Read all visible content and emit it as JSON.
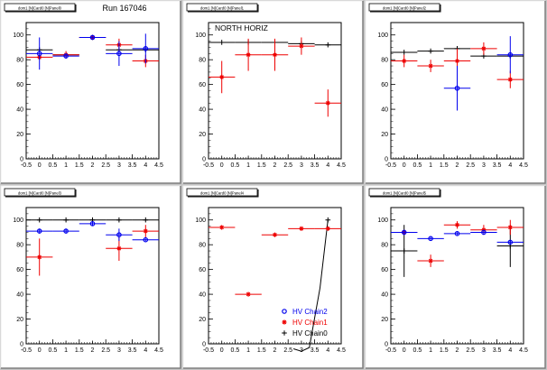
{
  "figure": {
    "run_label": "Run 167046",
    "region_label": "NORTH HORIZ",
    "legend": [
      {
        "label": "HV Chain2",
        "color": "#0000ee",
        "marker": "circle"
      },
      {
        "label": "HV Chain1",
        "color": "#ee0000",
        "marker": "star"
      },
      {
        "label": "HV Chain0",
        "color": "#000000",
        "marker": "plus"
      }
    ]
  },
  "chart_data": [
    {
      "type": "scatter",
      "title": "dom1 [N]Card0 [N]Panel0",
      "xlim": [
        -0.5,
        4.5
      ],
      "ylim": [
        0,
        110
      ],
      "xticks": [
        "-0.5",
        "0",
        "0.5",
        "1",
        "1.5",
        "2",
        "2.5",
        "3",
        "3.5",
        "4",
        "4.5"
      ],
      "yticks": [
        "0",
        "20",
        "40",
        "60",
        "80",
        "100"
      ],
      "series": [
        {
          "name": "HV Chain0",
          "color": "#000000",
          "points": [
            {
              "x": 0,
              "y": 88,
              "xerr": 0.5,
              "yerr": 0
            },
            {
              "x": 1,
              "y": 84,
              "xerr": 0.5,
              "yerr": 0
            },
            {
              "x": 2,
              "y": 98,
              "xerr": 0.5,
              "yerr": 0
            },
            {
              "x": 3,
              "y": 88,
              "xerr": 0.5,
              "yerr": 0
            },
            {
              "x": 4,
              "y": 88,
              "xerr": 0.5,
              "yerr": 0
            }
          ]
        },
        {
          "name": "HV Chain1",
          "color": "#ee0000",
          "points": [
            {
              "x": 0,
              "y": 82,
              "xerr": 0.5,
              "yerr": 2
            },
            {
              "x": 1,
              "y": 84,
              "xerr": 0.5,
              "yerr": 3
            },
            {
              "x": 2,
              "y": 98,
              "xerr": 0.5,
              "yerr": 1
            },
            {
              "x": 3,
              "y": 92,
              "xerr": 0.5,
              "yerr": 5
            },
            {
              "x": 4,
              "y": 79,
              "xerr": 0.5,
              "yerr": 5
            }
          ]
        },
        {
          "name": "HV Chain2",
          "color": "#0000ee",
          "points": [
            {
              "x": 0,
              "y": 85,
              "xerr": 0.5,
              "yerr": 13
            },
            {
              "x": 1,
              "y": 83,
              "xerr": 0.5,
              "yerr": 2
            },
            {
              "x": 2,
              "y": 98,
              "xerr": 0.5,
              "yerr": 1
            },
            {
              "x": 3,
              "y": 85,
              "xerr": 0.5,
              "yerr": 10
            },
            {
              "x": 4,
              "y": 89,
              "xerr": 0.5,
              "yerr": 12
            }
          ]
        }
      ]
    },
    {
      "type": "scatter",
      "title": "dom1 [N]Card0 [N]Panel1",
      "xlim": [
        -0.5,
        4.5
      ],
      "ylim": [
        0,
        110
      ],
      "xticks": [
        "-0.5",
        "0",
        "0.5",
        "1",
        "1.5",
        "2",
        "2.5",
        "3",
        "3.5",
        "4",
        "4.5"
      ],
      "yticks": [
        "0",
        "20",
        "40",
        "60",
        "80",
        "100"
      ],
      "series": [
        {
          "name": "HV Chain0",
          "color": "#000000",
          "points": [
            {
              "x": 0,
              "y": 94,
              "xerr": 0.5,
              "yerr": 0
            },
            {
              "x": 1,
              "y": 94,
              "xerr": 0.5,
              "yerr": 0
            },
            {
              "x": 2,
              "y": 94,
              "xerr": 0.5,
              "yerr": 0
            },
            {
              "x": 3,
              "y": 93,
              "xerr": 0.5,
              "yerr": 0
            },
            {
              "x": 4,
              "y": 92,
              "xerr": 0.5,
              "yerr": 0
            }
          ]
        },
        {
          "name": "HV Chain1",
          "color": "#ee0000",
          "points": [
            {
              "x": 0,
              "y": 66,
              "xerr": 0.5,
              "yerr": 13
            },
            {
              "x": 1,
              "y": 84,
              "xerr": 0.5,
              "yerr": 13
            },
            {
              "x": 2,
              "y": 84,
              "xerr": 0.5,
              "yerr": 13
            },
            {
              "x": 3,
              "y": 91,
              "xerr": 0.5,
              "yerr": 7
            },
            {
              "x": 4,
              "y": 45,
              "xerr": 0.5,
              "yerr": 11
            }
          ]
        }
      ]
    },
    {
      "type": "scatter",
      "title": "dom1 [N]Card0 [N]Panel2",
      "xlim": [
        -0.5,
        4.5
      ],
      "ylim": [
        0,
        110
      ],
      "xticks": [
        "-0.5",
        "0",
        "0.5",
        "1",
        "1.5",
        "2",
        "2.5",
        "3",
        "3.5",
        "4",
        "4.5"
      ],
      "yticks": [
        "0",
        "20",
        "40",
        "60",
        "80",
        "100"
      ],
      "series": [
        {
          "name": "HV Chain0",
          "color": "#000000",
          "points": [
            {
              "x": 0,
              "y": 86,
              "xerr": 0.5,
              "yerr": 0
            },
            {
              "x": 1,
              "y": 87,
              "xerr": 0.5,
              "yerr": 0
            },
            {
              "x": 2,
              "y": 89,
              "xerr": 0.5,
              "yerr": 0
            },
            {
              "x": 3,
              "y": 83,
              "xerr": 0.5,
              "yerr": 0
            },
            {
              "x": 4,
              "y": 83,
              "xerr": 0.5,
              "yerr": 0
            }
          ]
        },
        {
          "name": "HV Chain1",
          "color": "#ee0000",
          "points": [
            {
              "x": 0,
              "y": 79,
              "xerr": 0.5,
              "yerr": 5
            },
            {
              "x": 1,
              "y": 75,
              "xerr": 0.5,
              "yerr": 5
            },
            {
              "x": 2,
              "y": 79,
              "xerr": 0.5,
              "yerr": 10
            },
            {
              "x": 3,
              "y": 89,
              "xerr": 0.5,
              "yerr": 5
            },
            {
              "x": 4,
              "y": 64,
              "xerr": 0.5,
              "yerr": 7
            }
          ]
        },
        {
          "name": "HV Chain2",
          "color": "#0000ee",
          "points": [
            {
              "x": 2,
              "y": 57,
              "xerr": 0.5,
              "yerr": 18
            },
            {
              "x": 4,
              "y": 84,
              "xerr": 0.5,
              "yerr": 15
            }
          ]
        }
      ]
    },
    {
      "type": "scatter",
      "title": "dom1 [N]Card0 [N]Panel3",
      "xlim": [
        -0.5,
        4.5
      ],
      "ylim": [
        0,
        110
      ],
      "xticks": [
        "-0.5",
        "0",
        "0.5",
        "1",
        "1.5",
        "2",
        "2.5",
        "3",
        "3.5",
        "4",
        "4.5"
      ],
      "yticks": [
        "0",
        "20",
        "40",
        "60",
        "80",
        "100"
      ],
      "series": [
        {
          "name": "HV Chain0",
          "color": "#000000",
          "points": [
            {
              "x": 0,
              "y": 100,
              "xerr": 0.5,
              "yerr": 0
            },
            {
              "x": 1,
              "y": 100,
              "xerr": 0.5,
              "yerr": 0
            },
            {
              "x": 2,
              "y": 100,
              "xerr": 0.5,
              "yerr": 0
            },
            {
              "x": 3,
              "y": 100,
              "xerr": 0.5,
              "yerr": 0
            },
            {
              "x": 4,
              "y": 100,
              "xerr": 0.5,
              "yerr": 0
            }
          ]
        },
        {
          "name": "HV Chain1",
          "color": "#ee0000",
          "points": [
            {
              "x": 0,
              "y": 70,
              "xerr": 0.5,
              "yerr": 15
            },
            {
              "x": 3,
              "y": 77,
              "xerr": 0.5,
              "yerr": 10
            },
            {
              "x": 4,
              "y": 91,
              "xerr": 0.5,
              "yerr": 5
            }
          ]
        },
        {
          "name": "HV Chain2",
          "color": "#0000ee",
          "points": [
            {
              "x": 0,
              "y": 91,
              "xerr": 0.5,
              "yerr": 2
            },
            {
              "x": 1,
              "y": 91,
              "xerr": 0.5,
              "yerr": 2
            },
            {
              "x": 2,
              "y": 97,
              "xerr": 0.5,
              "yerr": 2
            },
            {
              "x": 3,
              "y": 88,
              "xerr": 0.5,
              "yerr": 5
            },
            {
              "x": 4,
              "y": 84,
              "xerr": 0.5,
              "yerr": 1
            }
          ]
        }
      ]
    },
    {
      "type": "scatter",
      "title": "dom1 [N]Card0 [N]Panel4",
      "xlim": [
        -0.5,
        4.5
      ],
      "ylim": [
        0,
        110
      ],
      "xticks": [
        "-0.5",
        "0",
        "0.5",
        "1",
        "1.5",
        "2",
        "2.5",
        "3",
        "3.5",
        "4",
        "4.5"
      ],
      "yticks": [
        "0",
        "20",
        "40",
        "60",
        "80",
        "100"
      ],
      "series": [
        {
          "name": "HV Chain1",
          "color": "#ee0000",
          "points": [
            {
              "x": 0,
              "y": 94,
              "xerr": 0.5,
              "yerr": 0
            },
            {
              "x": 1,
              "y": 40,
              "xerr": 0.5,
              "yerr": 0
            },
            {
              "x": 2,
              "y": 88,
              "xerr": 0.5,
              "yerr": 0
            },
            {
              "x": 3,
              "y": 93,
              "xerr": 0.5,
              "yerr": 0
            },
            {
              "x": 4,
              "y": 93,
              "xerr": 0.5,
              "yerr": 0
            }
          ]
        },
        {
          "name": "HV Chain0",
          "color": "#000000",
          "points": [
            {
              "x": 4,
              "y": 100,
              "xerr": 0,
              "yerr": 0
            }
          ]
        }
      ],
      "curve": {
        "color": "#000000",
        "points": [
          [
            2.7,
            -4
          ],
          [
            3.0,
            -6
          ],
          [
            3.3,
            -3
          ],
          [
            3.7,
            45
          ],
          [
            4.0,
            100
          ]
        ]
      }
    },
    {
      "type": "scatter",
      "title": "dom1 [N]Card0 [N]Panel5",
      "xlim": [
        -0.5,
        4.5
      ],
      "ylim": [
        0,
        110
      ],
      "xticks": [
        "-0.5",
        "0",
        "0.5",
        "1",
        "1.5",
        "2",
        "2.5",
        "3",
        "3.5",
        "4",
        "4.5"
      ],
      "yticks": [
        "0",
        "20",
        "40",
        "60",
        "80",
        "100"
      ],
      "series": [
        {
          "name": "HV Chain0",
          "color": "#000000",
          "points": [
            {
              "x": 0,
              "y": 75,
              "xerr": 0.5,
              "yerr": 21
            },
            {
              "x": 4,
              "y": 79,
              "xerr": 0.5,
              "yerr": 17
            }
          ]
        },
        {
          "name": "HV Chain1",
          "color": "#ee0000",
          "points": [
            {
              "x": 0,
              "y": 90,
              "xerr": 0.5,
              "yerr": 2
            },
            {
              "x": 1,
              "y": 67,
              "xerr": 0.5,
              "yerr": 5
            },
            {
              "x": 2,
              "y": 96,
              "xerr": 0.5,
              "yerr": 3
            },
            {
              "x": 3,
              "y": 92,
              "xerr": 0.5,
              "yerr": 4
            },
            {
              "x": 4,
              "y": 94,
              "xerr": 0.5,
              "yerr": 6
            }
          ]
        },
        {
          "name": "HV Chain2",
          "color": "#0000ee",
          "points": [
            {
              "x": 0,
              "y": 90,
              "xerr": 0.5,
              "yerr": 2
            },
            {
              "x": 1,
              "y": 85,
              "xerr": 0.5,
              "yerr": 1
            },
            {
              "x": 2,
              "y": 89,
              "xerr": 0.5,
              "yerr": 1
            },
            {
              "x": 3,
              "y": 90,
              "xerr": 0.5,
              "yerr": 1
            },
            {
              "x": 4,
              "y": 82,
              "xerr": 0.5,
              "yerr": 1
            }
          ]
        }
      ]
    }
  ]
}
